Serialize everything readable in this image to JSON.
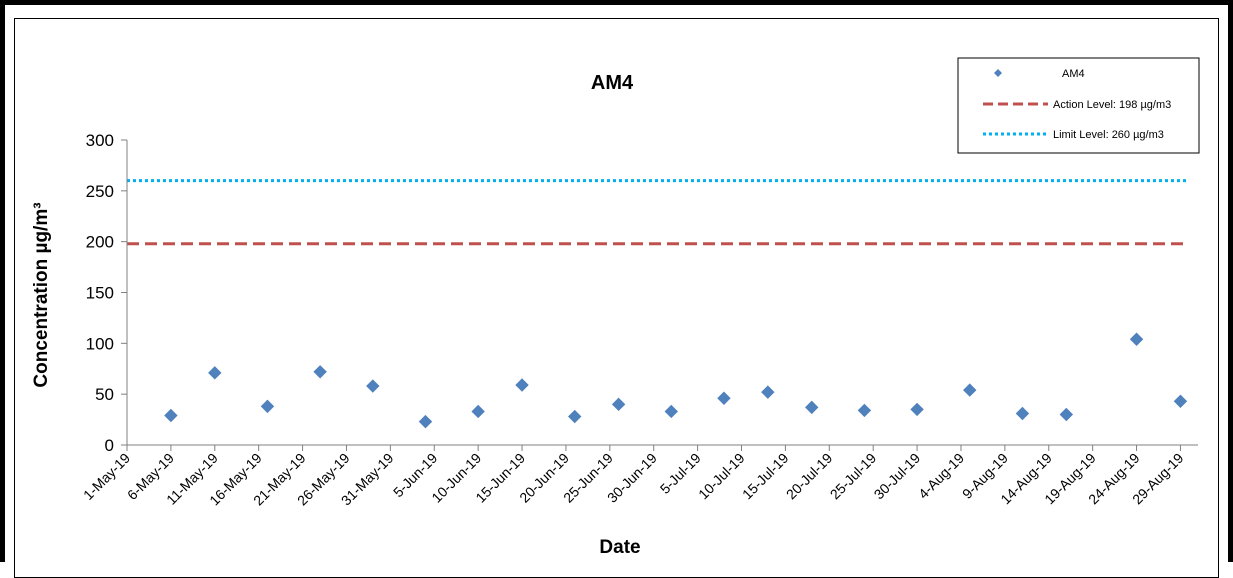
{
  "chart_data": {
    "type": "scatter",
    "title": "AM4",
    "xlabel": "Date",
    "ylabel": "Concentration µg/m³",
    "ylim": [
      0,
      300
    ],
    "yticks": [
      "0",
      "50",
      "100",
      "150",
      "200",
      "250",
      "300"
    ],
    "xticks": [
      "1-May-19",
      "6-May-19",
      "11-May-19",
      "16-May-19",
      "21-May-19",
      "26-May-19",
      "31-May-19",
      "5-Jun-19",
      "10-Jun-19",
      "15-Jun-19",
      "20-Jun-19",
      "25-Jun-19",
      "30-Jun-19",
      "5-Jul-19",
      "10-Jul-19",
      "15-Jul-19",
      "20-Jul-19",
      "25-Jul-19",
      "30-Jul-19",
      "4-Aug-19",
      "9-Aug-19",
      "14-Aug-19",
      "19-Aug-19",
      "24-Aug-19",
      "29-Aug-19"
    ],
    "xlim": [
      "2019-05-01",
      "2019-08-31"
    ],
    "series": [
      {
        "name": "AM4",
        "marker": "diamond",
        "color": "#4f81bd",
        "points": [
          {
            "x": "2019-05-06",
            "y": 29
          },
          {
            "x": "2019-05-11",
            "y": 71
          },
          {
            "x": "2019-05-17",
            "y": 38
          },
          {
            "x": "2019-05-23",
            "y": 72
          },
          {
            "x": "2019-05-29",
            "y": 58
          },
          {
            "x": "2019-06-04",
            "y": 23
          },
          {
            "x": "2019-06-10",
            "y": 33
          },
          {
            "x": "2019-06-15",
            "y": 59
          },
          {
            "x": "2019-06-21",
            "y": 28
          },
          {
            "x": "2019-06-26",
            "y": 40
          },
          {
            "x": "2019-07-02",
            "y": 33
          },
          {
            "x": "2019-07-08",
            "y": 46
          },
          {
            "x": "2019-07-13",
            "y": 52
          },
          {
            "x": "2019-07-18",
            "y": 37
          },
          {
            "x": "2019-07-24",
            "y": 34
          },
          {
            "x": "2019-07-30",
            "y": 35
          },
          {
            "x": "2019-08-05",
            "y": 54
          },
          {
            "x": "2019-08-11",
            "y": 31
          },
          {
            "x": "2019-08-16",
            "y": 30
          },
          {
            "x": "2019-08-24",
            "y": 104
          },
          {
            "x": "2019-08-29",
            "y": 43
          }
        ]
      }
    ],
    "reference_lines": [
      {
        "name": "Action Level: 198 µg/m3",
        "y": 198,
        "color": "#c0504d",
        "style": "dashed"
      },
      {
        "name": "Limit Level: 260 µg/m3",
        "y": 260,
        "color": "#00b0f0",
        "style": "dotted"
      }
    ],
    "legend_position": "top-right",
    "grid": false
  }
}
